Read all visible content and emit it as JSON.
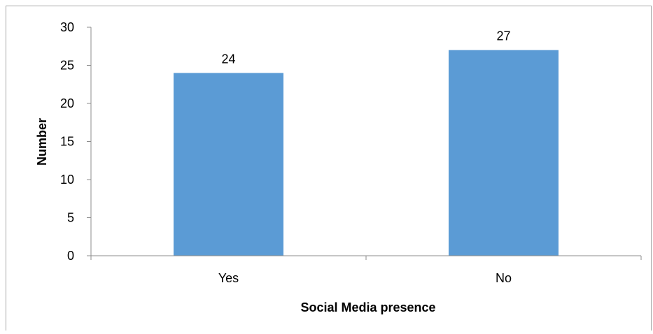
{
  "chart_data": {
    "type": "bar",
    "categories": [
      "Yes",
      "No"
    ],
    "values": [
      24,
      27
    ],
    "data_labels": [
      "24",
      "27"
    ],
    "xlabel": "Social Media presence",
    "ylabel": "Number",
    "ylim": [
      0,
      30
    ],
    "yticks": [
      "0",
      "5",
      "10",
      "15",
      "20",
      "25",
      "30"
    ],
    "grid": false,
    "legend": "none",
    "colors": {
      "bar": "#5b9bd5",
      "axis": "#8c8c8c"
    }
  }
}
